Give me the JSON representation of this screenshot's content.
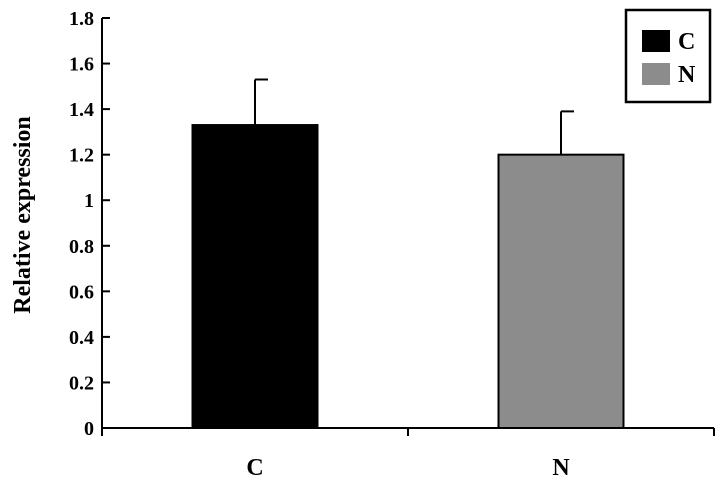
{
  "chart_data": {
    "type": "bar",
    "categories": [
      "C",
      "N"
    ],
    "values": [
      1.33,
      1.2
    ],
    "errors": [
      0.2,
      0.19
    ],
    "colors": [
      "#000000",
      "#8c8c8c"
    ],
    "ylabel": "Relative expression",
    "ylim": [
      0,
      1.8
    ],
    "yticks": [
      "0",
      "0.2",
      "0.4",
      "0.6",
      "0.8",
      "1",
      "1.2",
      "1.4",
      "1.6",
      "1.8"
    ],
    "legend": {
      "position": "top-right",
      "entries": [
        {
          "label": "C",
          "color": "#000000"
        },
        {
          "label": "N",
          "color": "#8c8c8c"
        }
      ]
    },
    "grid": false
  }
}
